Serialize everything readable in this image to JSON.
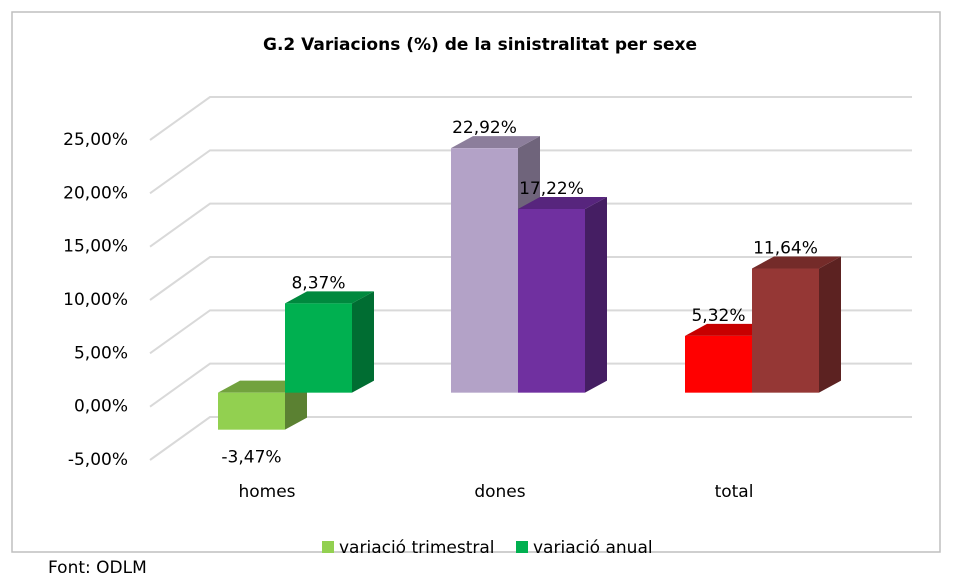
{
  "chart_data": {
    "type": "bar3d",
    "title": "G.2 Variacions (%) de la sinistralitat per sexe",
    "categories": [
      "homes",
      "dones",
      "total"
    ],
    "series": [
      {
        "name": "variació trimestral",
        "colors": [
          "#92d050",
          "#b3a2c7",
          "#ff0000"
        ],
        "values": [
          -3.47,
          22.92,
          5.32
        ],
        "value_labels": [
          "-3,47%",
          "22,92%",
          "5,32%"
        ]
      },
      {
        "name": "variació anual",
        "colors": [
          "#00b050",
          "#7030a0",
          "#953735"
        ],
        "values": [
          8.37,
          17.22,
          11.64
        ],
        "value_labels": [
          "8,37%",
          "17,22%",
          "11,64%"
        ]
      }
    ],
    "ylim": [
      -5,
      25
    ],
    "yticks": [
      {
        "value": -5,
        "label": "-5,00%"
      },
      {
        "value": 0,
        "label": "0,00%"
      },
      {
        "value": 5,
        "label": "5,00%"
      },
      {
        "value": 10,
        "label": "10,00%"
      },
      {
        "value": 15,
        "label": "15,00%"
      },
      {
        "value": 20,
        "label": "20,00%"
      },
      {
        "value": 25,
        "label": "25,00%"
      }
    ],
    "grid": true,
    "legend": "bottom",
    "source": "Font:  ODLM"
  }
}
